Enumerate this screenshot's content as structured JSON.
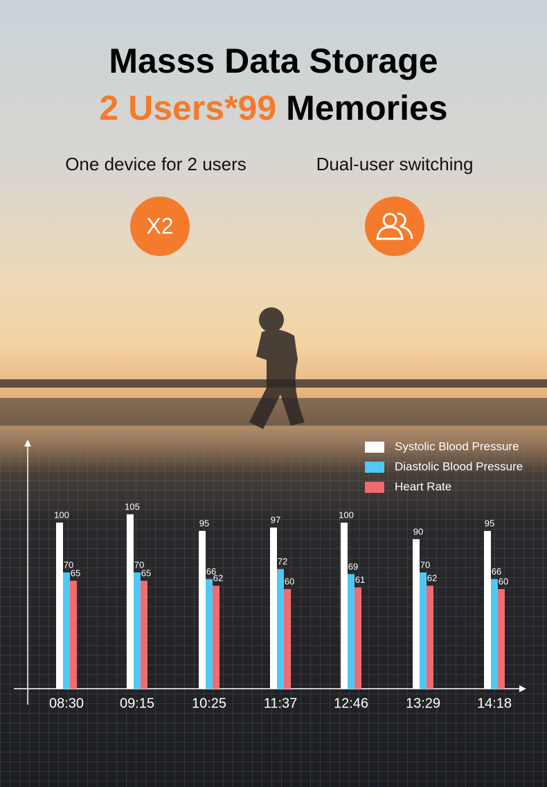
{
  "header": {
    "title": "Masss Data Storage",
    "subtitle_highlight": "2 Users*99",
    "subtitle_rest": "Memories"
  },
  "features": [
    {
      "label": "One device for 2 users",
      "icon_text": "X2"
    },
    {
      "label": "Dual-user switching"
    }
  ],
  "chart_data": {
    "type": "bar",
    "categories": [
      "08:30",
      "09:15",
      "10:25",
      "11:37",
      "12:46",
      "13:29",
      "14:18"
    ],
    "series": [
      {
        "name": "Systolic Blood Pressure",
        "color": "#ffffff",
        "values": [
          100,
          105,
          95,
          97,
          100,
          90,
          95
        ]
      },
      {
        "name": "Diastolic Blood Pressure",
        "color": "#4fc8f5",
        "values": [
          70,
          70,
          66,
          72,
          69,
          70,
          66
        ]
      },
      {
        "name": "Heart Rate",
        "color": "#f26b6e",
        "values": [
          65,
          65,
          62,
          60,
          61,
          62,
          60
        ]
      }
    ],
    "ylim": [
      0,
      150
    ],
    "legend": "top-right"
  }
}
